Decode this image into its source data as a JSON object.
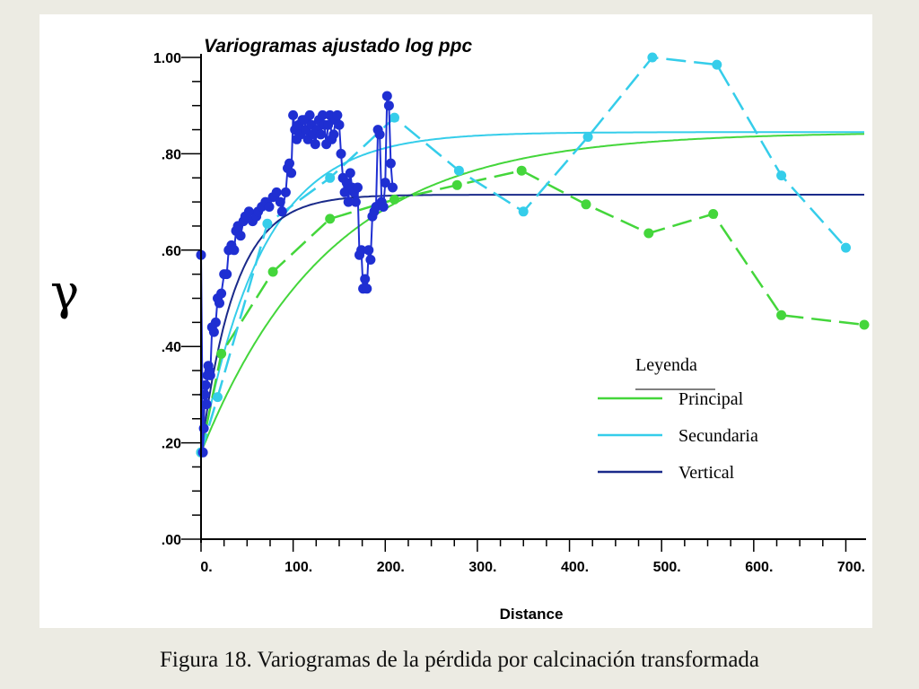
{
  "caption": "Figura 18. Variogramas de la pérdida por calcinación transformada",
  "chart_data": {
    "type": "line",
    "title": "Variogramas ajustado log ppc",
    "xlabel": "Distance",
    "ylabel": "γ",
    "xlim": [
      0,
      720
    ],
    "ylim": [
      0,
      1.0
    ],
    "x_ticks": [
      0,
      100,
      200,
      300,
      400,
      500,
      600,
      700
    ],
    "x_tick_labels": [
      "0.",
      "100.",
      "200.",
      "300.",
      "400.",
      "500.",
      "600.",
      "700."
    ],
    "y_ticks": [
      0,
      0.2,
      0.4,
      0.6,
      0.8,
      1.0
    ],
    "y_tick_labels": [
      ".00",
      ".20",
      ".40",
      ".60",
      ".80",
      "1.00"
    ],
    "legend": {
      "title": "Leyenda",
      "position": "right-middle",
      "entries": [
        {
          "label": "Principal",
          "color": "#44d63b"
        },
        {
          "label": "Secundaria",
          "color": "#35cdea"
        },
        {
          "label": "Vertical",
          "color": "#1a2a8a"
        }
      ]
    },
    "experimental": [
      {
        "name": "Principal",
        "color": "#44d63b",
        "x": [
          0,
          22,
          78,
          140,
          210,
          278,
          348,
          418,
          486,
          556,
          630,
          720
        ],
        "y": [
          0.18,
          0.385,
          0.555,
          0.665,
          0.705,
          0.735,
          0.765,
          0.695,
          0.635,
          0.675,
          0.465,
          0.445
        ]
      },
      {
        "name": "Secundaria",
        "color": "#35cdea",
        "x": [
          0,
          18,
          72,
          140,
          210,
          280,
          350,
          420,
          490,
          560,
          630,
          700
        ],
        "y": [
          0.18,
          0.295,
          0.655,
          0.75,
          0.875,
          0.765,
          0.68,
          0.835,
          1.0,
          0.985,
          0.755,
          0.605
        ]
      },
      {
        "name": "Vertical",
        "color": "#1f2fd2",
        "x": [
          0,
          2,
          3,
          4,
          5,
          6,
          7,
          8,
          9,
          10,
          12,
          14,
          16,
          18,
          20,
          22,
          25,
          28,
          30,
          33,
          36,
          38,
          40,
          43,
          46,
          48,
          52,
          56,
          60,
          62,
          66,
          70,
          74,
          78,
          82,
          86,
          88,
          92,
          94,
          96,
          98,
          100,
          102,
          104,
          106,
          108,
          110,
          112,
          114,
          116,
          118,
          120,
          122,
          124,
          126,
          128,
          130,
          132,
          134,
          136,
          138,
          140,
          142,
          144,
          146,
          148,
          150,
          152,
          154,
          156,
          158,
          160,
          162,
          164,
          166,
          168,
          170,
          172,
          174,
          176,
          178,
          180,
          182,
          184,
          186,
          188,
          190,
          192,
          194,
          196,
          198,
          200,
          202,
          204,
          206,
          208
        ],
        "y": [
          0.59,
          0.18,
          0.23,
          0.3,
          0.32,
          0.28,
          0.34,
          0.36,
          0.35,
          0.34,
          0.44,
          0.43,
          0.45,
          0.5,
          0.49,
          0.51,
          0.55,
          0.55,
          0.6,
          0.61,
          0.6,
          0.64,
          0.65,
          0.63,
          0.66,
          0.67,
          0.68,
          0.66,
          0.67,
          0.68,
          0.69,
          0.7,
          0.69,
          0.71,
          0.72,
          0.7,
          0.68,
          0.72,
          0.77,
          0.78,
          0.76,
          0.88,
          0.85,
          0.83,
          0.86,
          0.84,
          0.87,
          0.87,
          0.85,
          0.83,
          0.88,
          0.86,
          0.84,
          0.82,
          0.85,
          0.87,
          0.84,
          0.88,
          0.86,
          0.82,
          0.86,
          0.88,
          0.83,
          0.84,
          0.87,
          0.88,
          0.86,
          0.8,
          0.75,
          0.72,
          0.74,
          0.7,
          0.76,
          0.73,
          0.72,
          0.7,
          0.73,
          0.59,
          0.6,
          0.52,
          0.54,
          0.52,
          0.6,
          0.58,
          0.67,
          0.68,
          0.69,
          0.85,
          0.84,
          0.7,
          0.69,
          0.74,
          0.92,
          0.9,
          0.78,
          0.73
        ]
      }
    ],
    "models": [
      {
        "name": "Principal",
        "color": "#44d63b",
        "type": "exponential",
        "nugget": 0.18,
        "sill": 0.845,
        "range": 420
      },
      {
        "name": "Secundaria",
        "color": "#35cdea",
        "type": "exponential",
        "nugget": 0.18,
        "sill": 0.845,
        "range": 200
      },
      {
        "name": "Vertical",
        "color": "#1a2a8a",
        "type": "exponential",
        "nugget": 0.18,
        "sill": 0.715,
        "range": 110
      }
    ]
  }
}
